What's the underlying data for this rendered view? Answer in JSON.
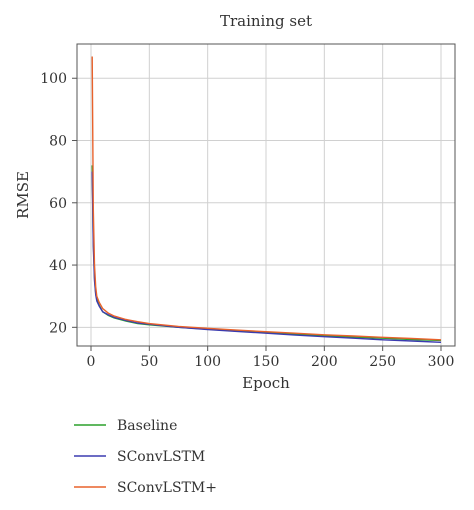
{
  "chart_data": {
    "type": "line",
    "title": "Training set",
    "xlabel": "Epoch",
    "ylabel": "RMSE",
    "xlim": [
      -12,
      312
    ],
    "ylim": [
      14,
      111
    ],
    "xticks": [
      0,
      50,
      100,
      150,
      200,
      250,
      300
    ],
    "yticks": [
      20,
      40,
      60,
      80,
      100
    ],
    "grid": true,
    "legend_position": "below-left",
    "series": [
      {
        "name": "Baseline",
        "color": "#2ca02c",
        "x": [
          1,
          2,
          3,
          4,
          5,
          7,
          10,
          15,
          20,
          30,
          40,
          50,
          75,
          100,
          125,
          150,
          175,
          200,
          225,
          250,
          275,
          300
        ],
        "values": [
          72,
          48,
          36,
          31,
          29,
          27,
          25,
          23.8,
          23,
          22,
          21.2,
          20.8,
          20,
          19.4,
          18.8,
          18.3,
          17.8,
          17.3,
          16.9,
          16.5,
          16.1,
          15.8
        ]
      },
      {
        "name": "SConvLSTM",
        "color": "#3b3bb0",
        "x": [
          1,
          2,
          3,
          4,
          5,
          7,
          10,
          15,
          20,
          30,
          40,
          50,
          75,
          100,
          125,
          150,
          175,
          200,
          225,
          250,
          275,
          300
        ],
        "values": [
          70,
          46,
          35,
          30.5,
          28.5,
          26.8,
          25,
          24,
          23.2,
          22.2,
          21.4,
          21,
          20,
          19.3,
          18.7,
          18.1,
          17.5,
          17,
          16.5,
          16,
          15.6,
          15.2
        ]
      },
      {
        "name": "SConvLSTM+",
        "color": "#e8622c",
        "x": [
          1,
          2,
          3,
          4,
          5,
          7,
          10,
          15,
          20,
          30,
          40,
          50,
          75,
          100,
          125,
          150,
          175,
          200,
          225,
          250,
          275,
          300
        ],
        "values": [
          107,
          58,
          40,
          33,
          30,
          28,
          26,
          24.5,
          23.6,
          22.5,
          21.8,
          21.2,
          20.3,
          19.7,
          19.1,
          18.6,
          18.1,
          17.6,
          17.2,
          16.8,
          16.4,
          16
        ]
      }
    ]
  }
}
